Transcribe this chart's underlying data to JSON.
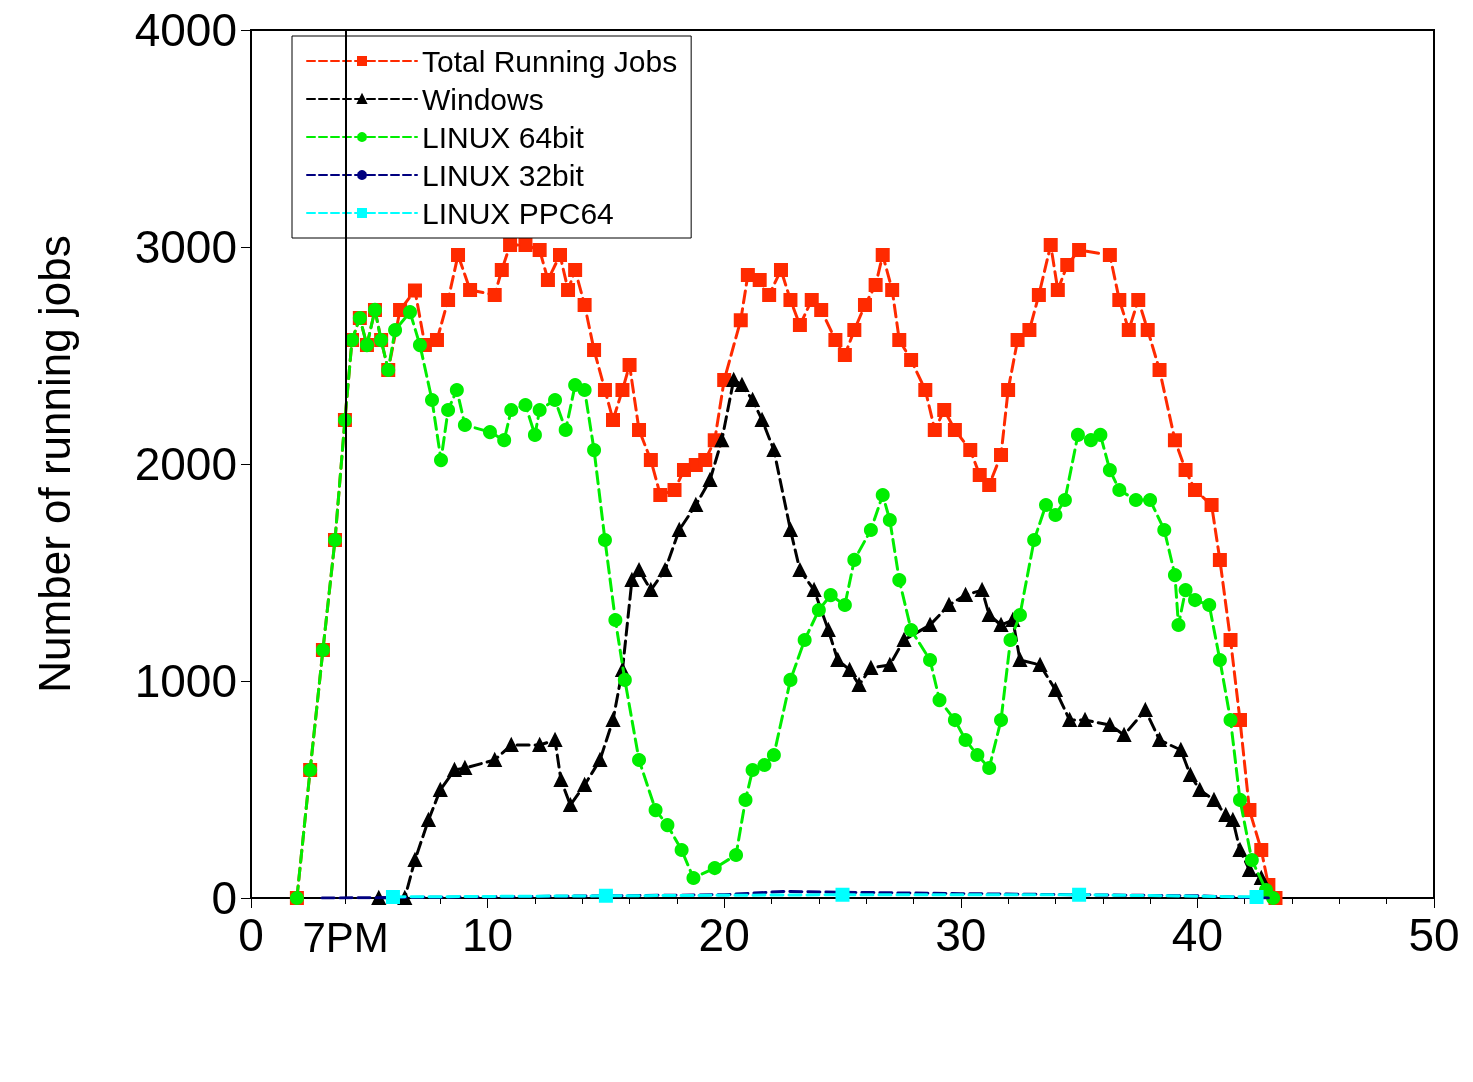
{
  "chart_data": {
    "type": "line",
    "xlabel": null,
    "ylabel": "Number of running jobs",
    "xlim": [
      0,
      50
    ],
    "xticks": [
      0,
      10,
      20,
      30,
      40,
      50
    ],
    "ylim": [
      0,
      4000
    ],
    "yticks": [
      0,
      1000,
      2000,
      3000,
      4000
    ],
    "grid": false,
    "legend": "top left",
    "ref_lines": [
      {
        "axis": "x",
        "value": 4,
        "label": "7PM",
        "color": "#000000",
        "line_style": "solid"
      }
    ],
    "series": [
      {
        "name": "Total Running Jobs",
        "color": "#ff2a00",
        "marker": "square",
        "line_style": "dashed",
        "x": [
          1.94,
          2.5,
          3.04,
          3.55,
          3.97,
          4.27,
          4.6,
          4.9,
          5.24,
          5.5,
          5.8,
          6.3,
          6.93,
          7.35,
          7.86,
          8.33,
          8.75,
          9.26,
          10.3,
          10.6,
          10.95,
          11.6,
          12.2,
          12.55,
          13.06,
          13.4,
          13.7,
          14.1,
          14.5,
          14.96,
          15.3,
          15.7,
          16.0,
          16.4,
          16.9,
          17.3,
          17.9,
          18.3,
          18.8,
          19.2,
          19.6,
          20.0,
          20.7,
          21.0,
          21.5,
          21.9,
          22.4,
          22.8,
          23.2,
          23.7,
          24.1,
          24.7,
          25.1,
          25.5,
          25.95,
          26.4,
          26.7,
          27.1,
          27.4,
          27.9,
          28.5,
          28.9,
          29.3,
          29.75,
          30.4,
          30.8,
          31.2,
          31.7,
          32.0,
          32.4,
          32.9,
          33.3,
          33.8,
          34.1,
          34.5,
          35.0,
          36.3,
          36.7,
          37.1,
          37.5,
          37.9,
          38.4,
          39.05,
          39.5,
          39.9,
          40.6,
          40.95,
          41.4,
          41.8,
          42.2,
          42.7,
          43.0,
          43.3
        ],
        "values": [
          0,
          590,
          1143,
          1650,
          2203,
          2571,
          2673,
          2548,
          2710,
          2571,
          2433,
          2710,
          2800,
          2548,
          2571,
          2756,
          2963,
          2802,
          2779,
          2894,
          3009,
          3009,
          2986,
          2848,
          2963,
          2802,
          2894,
          2733,
          2525,
          2341,
          2203,
          2341,
          2456,
          2157,
          2018,
          1857,
          1880,
          1972,
          1995,
          2018,
          2110,
          2387,
          2663,
          2871,
          2848,
          2779,
          2894,
          2756,
          2640,
          2756,
          2710,
          2571,
          2502,
          2617,
          2733,
          2825,
          2963,
          2802,
          2571,
          2479,
          2341,
          2157,
          2249,
          2157,
          2064,
          1949,
          1903,
          2041,
          2341,
          2571,
          2617,
          2779,
          3009,
          2802,
          2917,
          2986,
          2963,
          2756,
          2617,
          2756,
          2617,
          2433,
          2110,
          1972,
          1880,
          1811,
          1558,
          1189,
          820,
          405,
          221,
          60,
          0
        ]
      },
      {
        "name": "Windows",
        "color": "#000000",
        "marker": "triangle",
        "line_style": "dashed",
        "x": [
          5.4,
          6.5,
          6.93,
          7.5,
          8.0,
          8.6,
          9.04,
          10.3,
          11.0,
          12.2,
          12.85,
          13.1,
          13.5,
          14.1,
          14.75,
          15.3,
          15.7,
          16.1,
          16.4,
          16.9,
          17.5,
          18.1,
          18.8,
          19.4,
          19.9,
          20.4,
          20.75,
          21.2,
          21.6,
          22.1,
          22.8,
          23.2,
          23.8,
          24.4,
          24.8,
          25.3,
          25.7,
          26.2,
          27.0,
          27.6,
          28.7,
          29.5,
          30.2,
          30.9,
          31.2,
          31.7,
          32.2,
          32.5,
          33.35,
          34.0,
          34.6,
          35.25,
          36.3,
          36.9,
          37.8,
          38.4,
          39.3,
          39.7,
          40.1,
          40.7,
          41.2,
          41.5,
          41.8,
          42.2,
          42.7
        ],
        "values": [
          0,
          0,
          175,
          359,
          498,
          590,
          599,
          636,
          705,
          705,
          728,
          544,
          428,
          521,
          636,
          820,
          1051,
          1465,
          1511,
          1419,
          1511,
          1696,
          1811,
          1926,
          2110,
          2387,
          2364,
          2295,
          2203,
          2064,
          1696,
          1511,
          1419,
          1235,
          1097,
          1051,
          982,
          1060,
          1074,
          1189,
          1258,
          1350,
          1396,
          1419,
          1304,
          1258,
          1281,
          1097,
          1074,
          959,
          820,
          820,
          797,
          751,
          866,
          728,
          682,
          567,
          498,
          452,
          382,
          359,
          221,
          129,
          92
        ]
      },
      {
        "name": "LINUX 64bit",
        "color": "#00ee00",
        "marker": "circle",
        "line_style": "dashed",
        "x": [
          1.94,
          2.5,
          3.04,
          3.55,
          3.97,
          4.27,
          4.6,
          4.9,
          5.24,
          5.5,
          5.8,
          6.09,
          6.72,
          7.14,
          7.65,
          8.03,
          8.33,
          8.7,
          9.04,
          10.1,
          10.7,
          11.0,
          11.6,
          12.0,
          12.2,
          12.85,
          13.3,
          13.7,
          14.1,
          14.5,
          14.96,
          15.4,
          15.8,
          16.4,
          17.1,
          17.6,
          18.2,
          18.7,
          19.6,
          20.5,
          20.9,
          21.2,
          21.7,
          22.1,
          22.8,
          23.4,
          24.0,
          24.5,
          25.1,
          25.5,
          26.2,
          26.7,
          27.0,
          27.4,
          27.9,
          28.7,
          29.1,
          29.75,
          30.2,
          30.7,
          31.2,
          31.7,
          32.1,
          32.5,
          33.1,
          33.6,
          34.0,
          34.4,
          34.95,
          35.5,
          35.9,
          36.3,
          36.7,
          37.4,
          38.0,
          38.6,
          39.05,
          39.2,
          39.5,
          39.9,
          40.5,
          40.95,
          41.4,
          41.8,
          42.3,
          42.9,
          43.2
        ],
        "values": [
          0,
          590,
          1143,
          1650,
          2203,
          2571,
          2673,
          2548,
          2710,
          2571,
          2433,
          2617,
          2700,
          2548,
          2295,
          2018,
          2249,
          2341,
          2180,
          2147,
          2110,
          2249,
          2272,
          2134,
          2249,
          2295,
          2157,
          2364,
          2341,
          2064,
          1650,
          1281,
          1005,
          636,
          405,
          336,
          221,
          92,
          138,
          198,
          452,
          590,
          613,
          659,
          1005,
          1189,
          1327,
          1396,
          1350,
          1558,
          1696,
          1857,
          1742,
          1465,
          1235,
          1097,
          912,
          820,
          728,
          659,
          599,
          820,
          1189,
          1304,
          1650,
          1811,
          1765,
          1834,
          2134,
          2110,
          2134,
          1972,
          1880,
          1834,
          1834,
          1696,
          1488,
          1258,
          1419,
          1373,
          1350,
          1097,
          820,
          452,
          175,
          37,
          0
        ]
      },
      {
        "name": "LINUX 32bit",
        "color": "#000080",
        "marker": "none",
        "line_style": "dashed",
        "x": [
          3,
          10,
          20,
          22.5,
          30,
          40,
          43
        ],
        "values": [
          0,
          5,
          15,
          30,
          20,
          10,
          0
        ]
      },
      {
        "name": "LINUX PPC64",
        "color": "#00ffff",
        "marker": "square",
        "line_style": "dashed",
        "x": [
          6,
          15,
          25,
          35,
          42.5
        ],
        "values": [
          5,
          10,
          15,
          15,
          5
        ]
      }
    ]
  }
}
